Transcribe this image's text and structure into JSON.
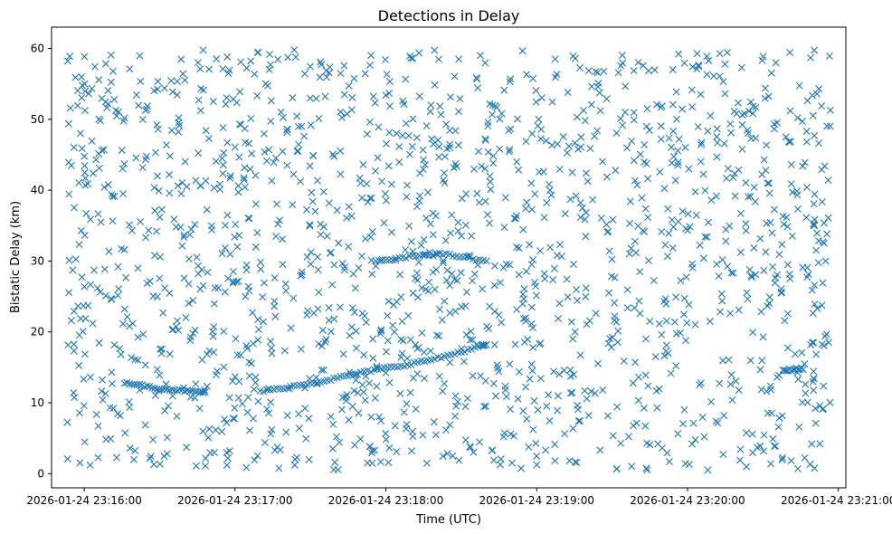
{
  "chart_data": {
    "type": "scatter",
    "title": "Detections in Delay",
    "xlabel": "Time (UTC)",
    "ylabel": "Bistatic Delay (km)",
    "x_unit": "UTC time on 2026-01-24",
    "xlim": [
      "2026-01-24 23:15:47",
      "2026-01-24 23:21:03"
    ],
    "ylim": [
      -2,
      63
    ],
    "x_tick_labels": [
      "2026-01-24 23:16:00",
      "2026-01-24 23:17:00",
      "2026-01-24 23:18:00",
      "2026-01-24 23:19:00",
      "2026-01-24 23:20:00",
      "2026-01-24 23:21:00"
    ],
    "y_tick_labels": [
      "0",
      "10",
      "20",
      "30",
      "40",
      "50",
      "60"
    ],
    "marker": "x",
    "color": "#1f77b4",
    "grid": false,
    "legend": "none",
    "clutter_points": {
      "description_of_distribution": "dense uniform-looking clutter across the whole window",
      "x_range": [
        "2026-01-24 23:15:53",
        "2026-01-24 23:20:57"
      ],
      "y_range": [
        0.5,
        59.8
      ],
      "approx_count": 1650
    },
    "tracks": [
      {
        "points": [
          [
            "2026-01-24 23:16:16",
            12.9
          ],
          [
            "2026-01-24 23:16:19",
            12.7
          ],
          [
            "2026-01-24 23:16:22",
            12.5
          ],
          [
            "2026-01-24 23:16:25",
            12.3
          ],
          [
            "2026-01-24 23:16:28",
            12.1
          ],
          [
            "2026-01-24 23:16:31",
            12.0
          ],
          [
            "2026-01-24 23:16:34",
            11.9
          ],
          [
            "2026-01-24 23:16:37",
            11.8
          ],
          [
            "2026-01-24 23:16:40",
            11.7
          ],
          [
            "2026-01-24 23:16:43",
            11.6
          ],
          [
            "2026-01-24 23:16:46",
            11.5
          ],
          [
            "2026-01-24 23:16:48",
            11.5
          ]
        ]
      },
      {
        "points": [
          [
            "2026-01-24 23:17:10",
            11.6
          ],
          [
            "2026-01-24 23:17:14",
            11.8
          ],
          [
            "2026-01-24 23:17:18",
            12.0
          ],
          [
            "2026-01-24 23:17:22",
            12.3
          ],
          [
            "2026-01-24 23:17:26",
            12.5
          ],
          [
            "2026-01-24 23:17:30",
            12.8
          ],
          [
            "2026-01-24 23:17:34",
            13.0
          ],
          [
            "2026-01-24 23:17:38",
            13.3
          ],
          [
            "2026-01-24 23:17:42",
            13.6
          ],
          [
            "2026-01-24 23:17:46",
            13.9
          ],
          [
            "2026-01-24 23:17:50",
            14.2
          ],
          [
            "2026-01-24 23:17:54",
            14.5
          ],
          [
            "2026-01-24 23:17:58",
            14.8
          ],
          [
            "2026-01-24 23:18:02",
            15.0
          ],
          [
            "2026-01-24 23:18:06",
            15.2
          ],
          [
            "2026-01-24 23:18:10",
            15.5
          ],
          [
            "2026-01-24 23:18:14",
            15.8
          ],
          [
            "2026-01-24 23:18:18",
            16.1
          ],
          [
            "2026-01-24 23:18:22",
            16.4
          ],
          [
            "2026-01-24 23:18:26",
            16.8
          ],
          [
            "2026-01-24 23:18:30",
            17.2
          ],
          [
            "2026-01-24 23:18:34",
            17.6
          ],
          [
            "2026-01-24 23:18:38",
            18.0
          ],
          [
            "2026-01-24 23:18:40",
            18.2
          ]
        ]
      },
      {
        "points": [
          [
            "2026-01-24 23:17:56",
            30.0
          ],
          [
            "2026-01-24 23:18:00",
            30.1
          ],
          [
            "2026-01-24 23:18:04",
            30.3
          ],
          [
            "2026-01-24 23:18:08",
            30.5
          ],
          [
            "2026-01-24 23:18:12",
            30.7
          ],
          [
            "2026-01-24 23:18:16",
            30.9
          ],
          [
            "2026-01-24 23:18:20",
            31.0
          ],
          [
            "2026-01-24 23:18:24",
            30.9
          ],
          [
            "2026-01-24 23:18:28",
            30.7
          ],
          [
            "2026-01-24 23:18:32",
            30.5
          ],
          [
            "2026-01-24 23:18:36",
            30.2
          ],
          [
            "2026-01-24 23:18:40",
            30.0
          ]
        ]
      },
      {
        "points": [
          [
            "2026-01-24 23:20:38",
            14.5
          ],
          [
            "2026-01-24 23:20:40",
            14.6
          ],
          [
            "2026-01-24 23:20:42",
            14.7
          ],
          [
            "2026-01-24 23:20:44",
            14.8
          ],
          [
            "2026-01-24 23:20:46",
            14.7
          ]
        ]
      }
    ]
  }
}
